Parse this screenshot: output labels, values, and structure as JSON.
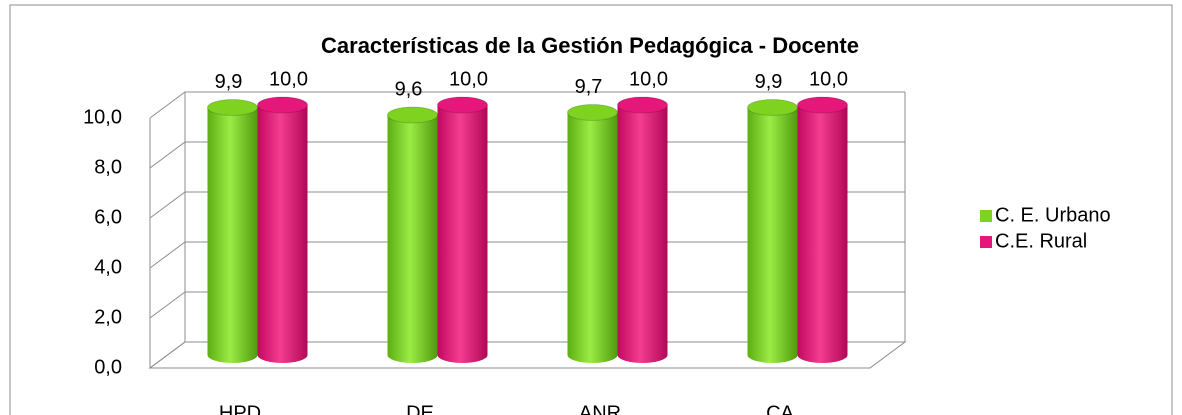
{
  "chart_data": {
    "type": "bar3d",
    "title": "Características de la Gestión Pedagógica - Docente",
    "categories": [
      "HPD",
      "DE",
      "ANR",
      "CA"
    ],
    "series": [
      {
        "name": "C. E. Urbano",
        "color": "#7ed321",
        "values": [
          9.9,
          9.6,
          9.7,
          9.9
        ],
        "value_labels": [
          "9,9",
          "9,6",
          "9,7",
          "9,9"
        ]
      },
      {
        "name": "C.E. Rural",
        "color": "#e6177a",
        "values": [
          10,
          10,
          10,
          10
        ],
        "value_labels": [
          "10,0",
          "10,0",
          "10,0",
          "10,0"
        ]
      }
    ],
    "ylim": [
      0,
      10
    ],
    "yticks": [
      {
        "value": 0,
        "label": "0,0"
      },
      {
        "value": 2,
        "label": "2,0"
      },
      {
        "value": 4,
        "label": "4,0"
      },
      {
        "value": 6,
        "label": "6,0"
      },
      {
        "value": 8,
        "label": "8,0"
      },
      {
        "value": 10,
        "label": "10,0"
      }
    ],
    "grid": true,
    "legend": "right"
  }
}
